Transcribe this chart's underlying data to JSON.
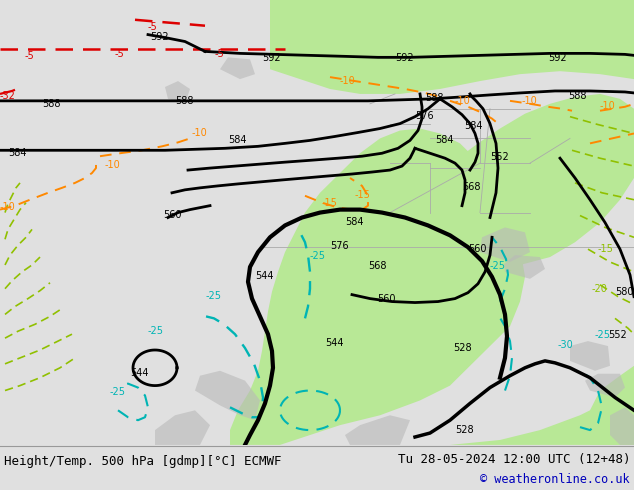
{
  "title_left": "Height/Temp. 500 hPa [gdmp][°C] ECMWF",
  "title_right": "Tu 28-05-2024 12:00 UTC (12+48)",
  "copyright": "© weatheronline.co.uk",
  "bg_color": "#e0e0e0",
  "map_bg_color": "#e8e8e8",
  "green_fill": "#b8e896",
  "gray_land": "#c0c0c0",
  "bottom_bar_color": "#d8d8d8",
  "black": "#000000",
  "cyan": "#00b4b4",
  "orange": "#ff8800",
  "red": "#dd0000",
  "yellow_green": "#90c000",
  "blue": "#0000bb"
}
